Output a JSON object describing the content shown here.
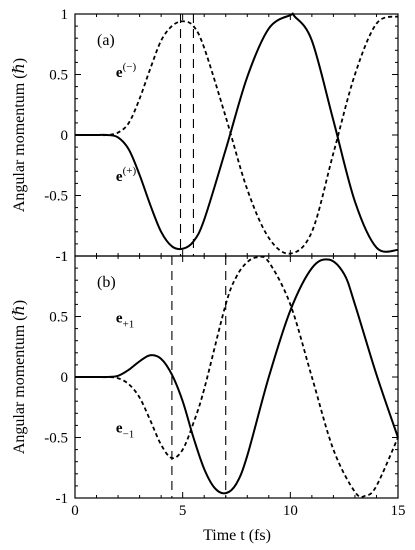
{
  "chart_data": [
    {
      "type": "line",
      "panel_label": "(a)",
      "xlim": [
        0,
        15
      ],
      "ylim": [
        -1,
        1
      ],
      "x_ticks": [
        "0",
        "5",
        "10",
        "15"
      ],
      "y_ticks": [
        "1",
        "0.5",
        "0",
        "-0.5",
        "-1"
      ],
      "xlabel": "",
      "ylabel": "Angular momentum (ℏ)",
      "vlines": [
        4.9,
        5.5
      ],
      "series": [
        {
          "name": "e(+)",
          "label_main": "e",
          "label_mod": "(+)",
          "label_pos": [
            1.9,
            -0.38
          ],
          "style": "solid",
          "x": [
            0,
            1,
            1.5,
            2,
            2.5,
            3,
            3.5,
            4,
            4.5,
            5,
            5.5,
            6,
            7,
            8,
            9,
            10,
            10.2,
            11,
            12,
            13,
            14,
            15
          ],
          "y": [
            0,
            0,
            0,
            -0.02,
            -0.12,
            -0.33,
            -0.58,
            -0.8,
            -0.92,
            -0.94,
            -0.88,
            -0.7,
            -0.12,
            0.48,
            0.88,
            0.99,
            0.98,
            0.78,
            0.12,
            -0.55,
            -0.93,
            -0.95
          ]
        },
        {
          "name": "e(−)",
          "label_main": "e",
          "label_mod": "(−)",
          "label_pos": [
            1.9,
            0.48
          ],
          "style": "dashed",
          "x": [
            0,
            1,
            1.5,
            2,
            2.5,
            3,
            3.5,
            4,
            4.5,
            5,
            5.5,
            6,
            7,
            8,
            9,
            10,
            11,
            12,
            13,
            14,
            15
          ],
          "y": [
            0,
            0,
            0,
            0.02,
            0.1,
            0.3,
            0.55,
            0.78,
            0.9,
            0.94,
            0.9,
            0.72,
            0.15,
            -0.45,
            -0.85,
            -0.98,
            -0.8,
            -0.15,
            0.5,
            0.92,
            0.98
          ]
        }
      ]
    },
    {
      "type": "line",
      "panel_label": "(b)",
      "xlim": [
        0,
        15
      ],
      "ylim": [
        -1,
        1
      ],
      "x_ticks": [
        "0",
        "5",
        "10",
        "15"
      ],
      "y_ticks": [
        "1",
        "0.5",
        "0",
        "-0.5",
        "-1"
      ],
      "xlabel": "Time t (fs)",
      "ylabel": "Angular momentum (ℏ)",
      "vlines": [
        4.5,
        7.0
      ],
      "series": [
        {
          "name": "e+1",
          "label_main": "e",
          "label_mod": "+1",
          "label_pos": [
            1.9,
            0.45
          ],
          "style": "solid",
          "x": [
            0,
            1,
            1.5,
            2,
            2.5,
            3,
            3.5,
            4,
            4.5,
            5,
            5.5,
            6,
            6.5,
            7,
            7.5,
            8,
            9,
            10,
            11,
            11.8,
            12.5,
            13,
            14,
            15
          ],
          "y": [
            0,
            0,
            0,
            0.01,
            0.06,
            0.13,
            0.18,
            0.15,
            0.02,
            -0.2,
            -0.5,
            -0.76,
            -0.92,
            -0.96,
            -0.88,
            -0.65,
            0.0,
            0.55,
            0.9,
            0.97,
            0.85,
            0.6,
            0.02,
            -0.5
          ]
        },
        {
          "name": "e−1",
          "label_main": "e",
          "label_mod": "−1",
          "label_pos": [
            1.9,
            -0.46
          ],
          "style": "dashed",
          "x": [
            0,
            1,
            1.5,
            2,
            2.5,
            3,
            3.5,
            4,
            4.5,
            5,
            5.5,
            6,
            7,
            7.5,
            8,
            8.5,
            9,
            10,
            11,
            12,
            13,
            13.5,
            14,
            15
          ],
          "y": [
            0,
            0,
            0,
            -0.01,
            -0.06,
            -0.17,
            -0.36,
            -0.56,
            -0.67,
            -0.6,
            -0.38,
            -0.1,
            0.6,
            0.83,
            0.95,
            0.99,
            0.95,
            0.6,
            0.0,
            -0.6,
            -0.95,
            -0.98,
            -0.9,
            -0.5
          ]
        }
      ]
    }
  ]
}
